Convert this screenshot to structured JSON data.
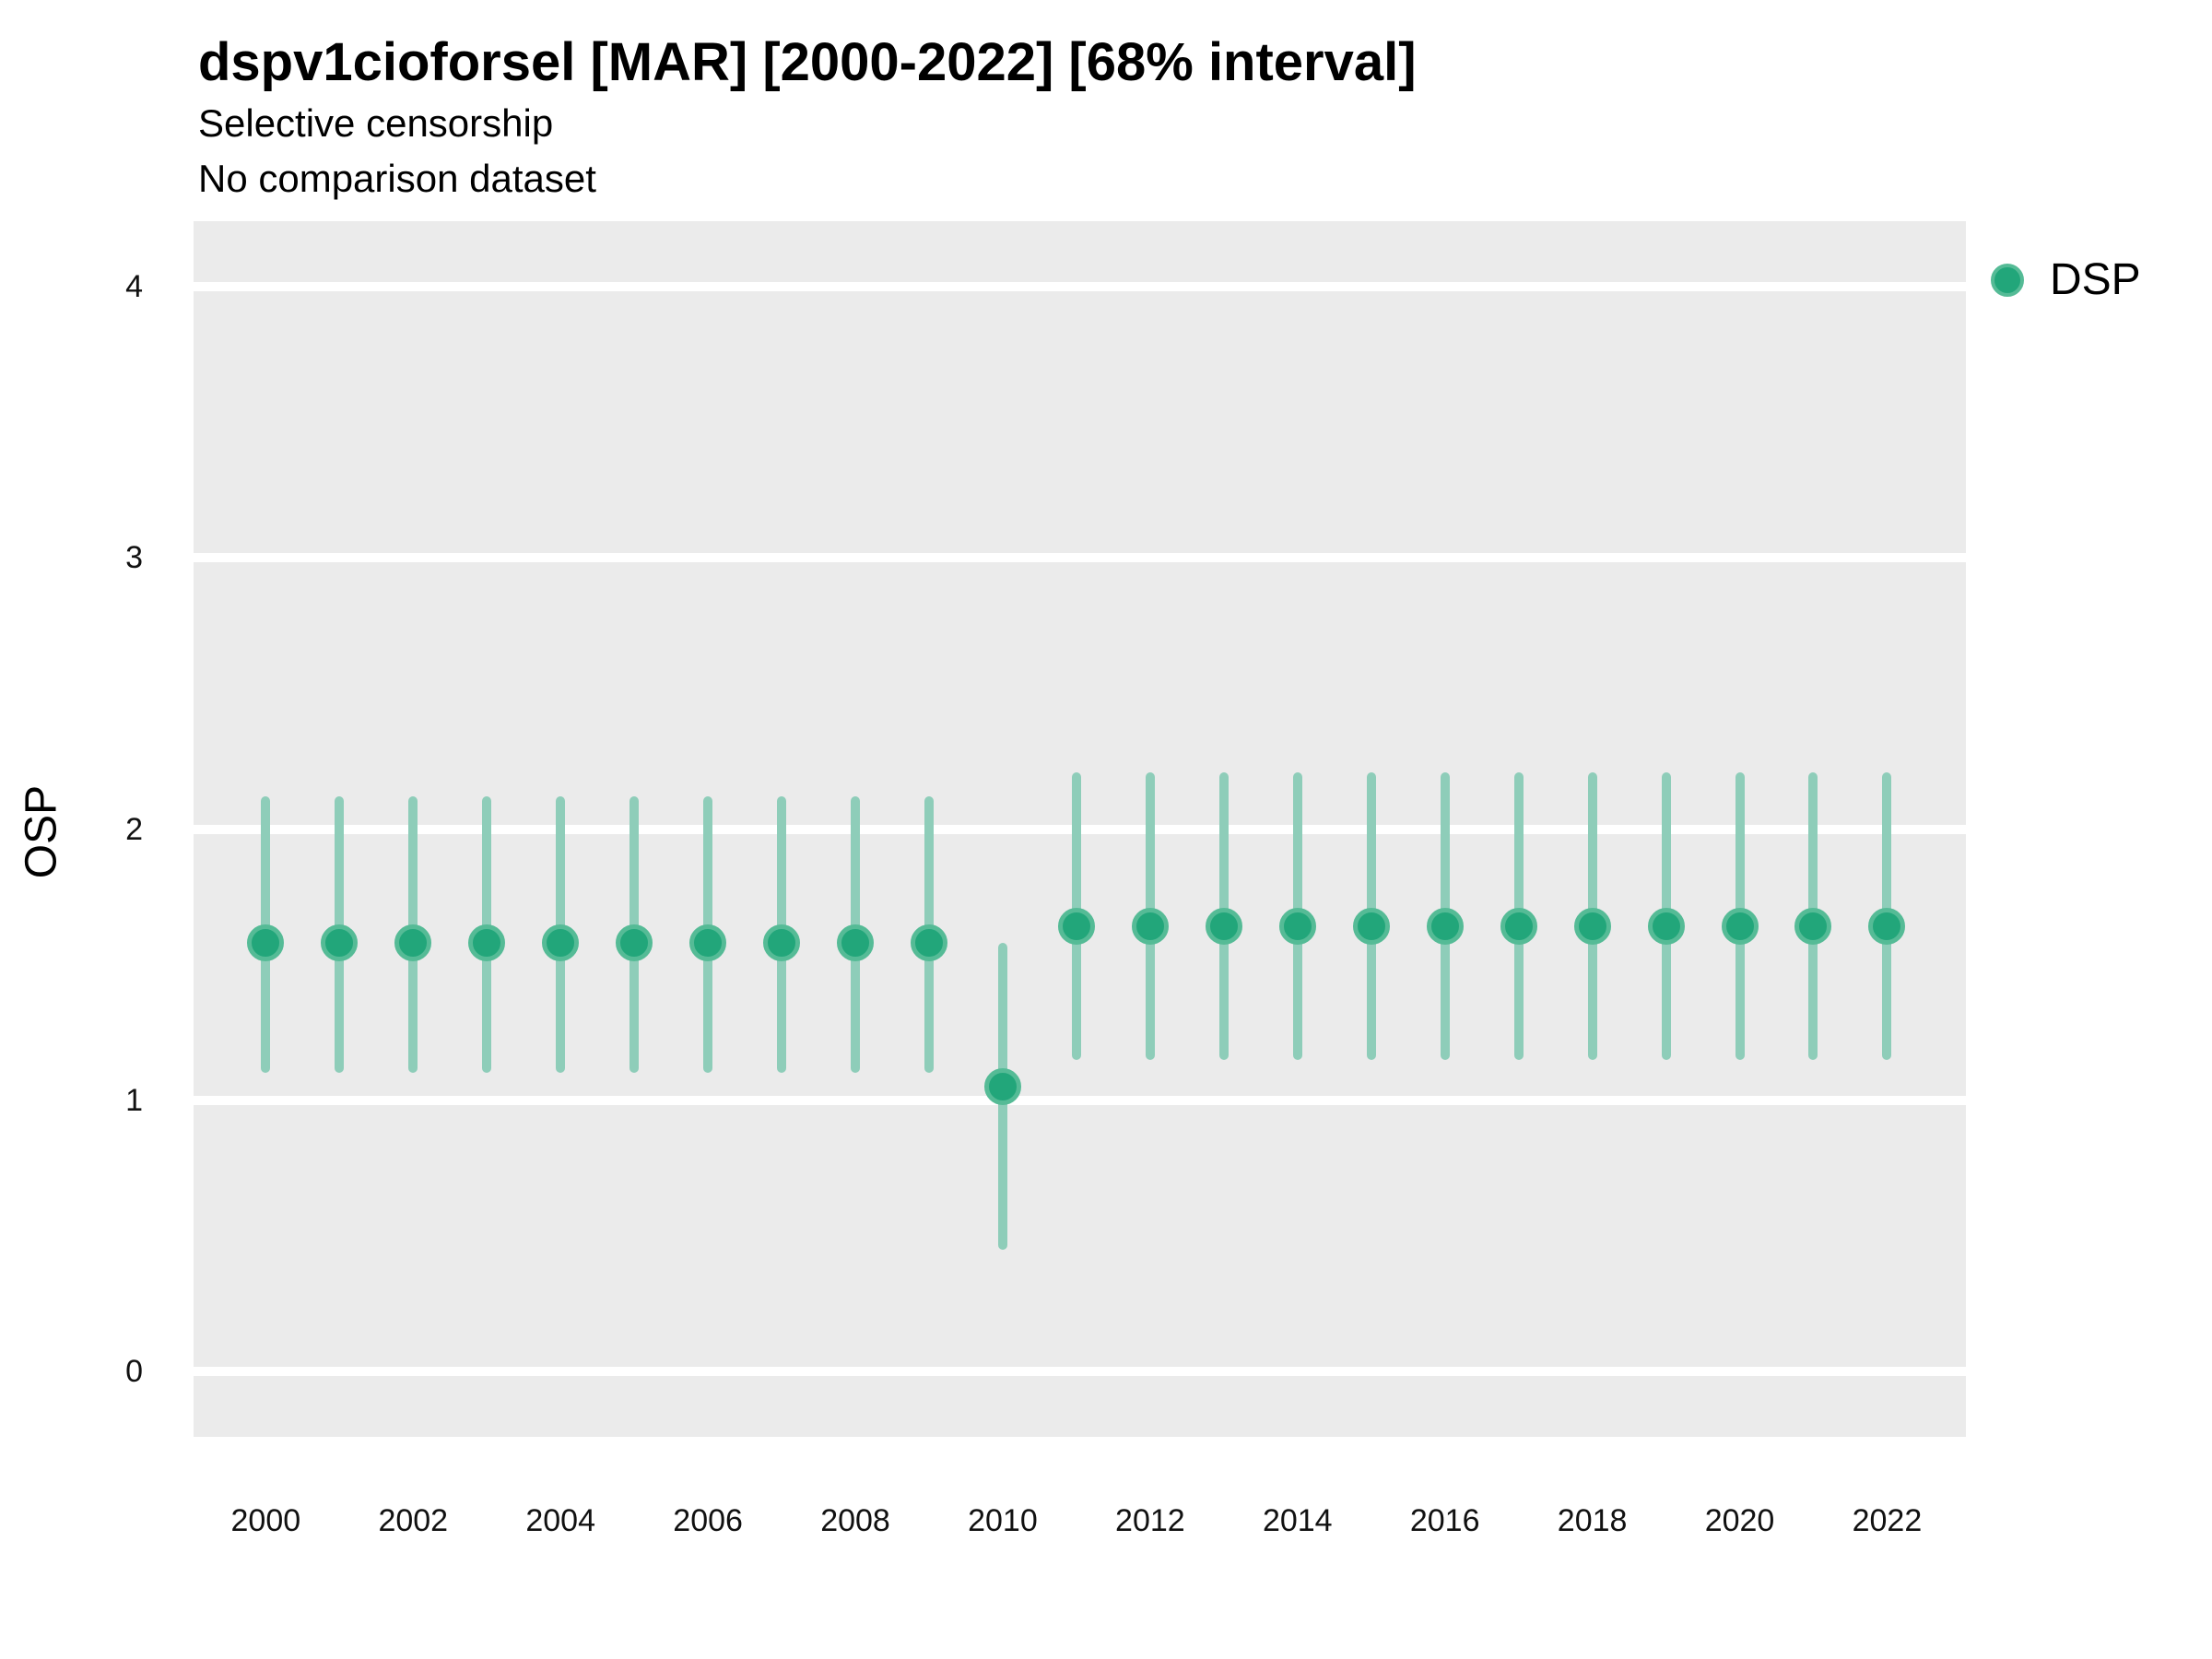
{
  "header": {
    "title": "dspv1cioforsel [MAR] [2000-2022] [68% interval]",
    "subtitle1": "Selective censorship",
    "subtitle2": "No comparison dataset"
  },
  "legend": {
    "position": "right",
    "items": [
      {
        "label": "DSP",
        "marker": "circle-icon",
        "color": "#22a67a"
      }
    ]
  },
  "chart_data": {
    "type": "scatter",
    "title": "dspv1cioforsel [MAR] [2000-2022] [68% interval]",
    "subtitle": [
      "Selective censorship",
      "No comparison dataset"
    ],
    "xlabel": "",
    "ylabel": "OSP",
    "interval_label": "68% interval",
    "x": [
      2000,
      2001,
      2002,
      2003,
      2004,
      2005,
      2006,
      2007,
      2008,
      2009,
      2010,
      2011,
      2012,
      2013,
      2014,
      2015,
      2016,
      2017,
      2018,
      2019,
      2020,
      2021,
      2022
    ],
    "series": [
      {
        "name": "DSP",
        "values": [
          1.58,
          1.58,
          1.58,
          1.58,
          1.58,
          1.58,
          1.58,
          1.58,
          1.58,
          1.58,
          1.05,
          1.64,
          1.64,
          1.64,
          1.64,
          1.64,
          1.64,
          1.64,
          1.64,
          1.64,
          1.64,
          1.64,
          1.64
        ],
        "lower": [
          1.1,
          1.1,
          1.1,
          1.1,
          1.1,
          1.1,
          1.1,
          1.1,
          1.1,
          1.1,
          0.45,
          1.15,
          1.15,
          1.15,
          1.15,
          1.15,
          1.15,
          1.15,
          1.15,
          1.15,
          1.15,
          1.15,
          1.15
        ],
        "upper": [
          2.12,
          2.12,
          2.12,
          2.12,
          2.12,
          2.12,
          2.12,
          2.12,
          2.12,
          2.12,
          1.58,
          2.21,
          2.21,
          2.21,
          2.21,
          2.21,
          2.21,
          2.21,
          2.21,
          2.21,
          2.21,
          2.21,
          2.21
        ]
      }
    ],
    "xticks": [
      2000,
      2002,
      2004,
      2006,
      2008,
      2010,
      2012,
      2014,
      2016,
      2018,
      2020,
      2022
    ],
    "yticks": [
      0,
      1,
      2,
      3,
      4
    ],
    "xlim": [
      1999.02,
      2023.07
    ],
    "ylim": [
      -0.24,
      4.24
    ],
    "grid": "horizontal-major-only",
    "legend_position": "right",
    "colors": {
      "point_fill": "#22a67a",
      "point_ring": "#55bb96",
      "interval_bar": "#8ecdb9",
      "panel_bg": "#ebebeb",
      "gridline": "#ffffff",
      "text": "#111111"
    }
  }
}
